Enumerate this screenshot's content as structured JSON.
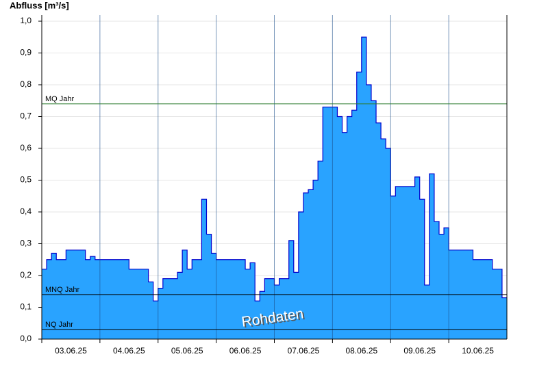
{
  "chart_data": {
    "type": "area",
    "title": "Abfluss [m³/s]",
    "annotation": "Rohdaten",
    "day_labels": [
      "03.06.25",
      "04.06.25",
      "05.06.25",
      "06.06.25",
      "07.06.25",
      "08.06.25",
      "09.06.25",
      "10.06.25"
    ],
    "series": [
      {
        "color": "#29a3ff",
        "line_color": "#0000cc",
        "values": [
          0.22,
          0.25,
          0.27,
          0.25,
          0.25,
          0.28,
          0.28,
          0.28,
          0.28,
          0.25,
          0.26,
          0.25,
          0.25,
          0.25,
          0.25,
          0.25,
          0.25,
          0.25,
          0.22,
          0.22,
          0.22,
          0.22,
          0.18,
          0.12,
          0.16,
          0.19,
          0.19,
          0.19,
          0.21,
          0.28,
          0.22,
          0.25,
          0.25,
          0.44,
          0.33,
          0.27,
          0.25,
          0.25,
          0.25,
          0.25,
          0.25,
          0.25,
          0.22,
          0.24,
          0.12,
          0.15,
          0.19,
          0.19,
          0.17,
          0.19,
          0.19,
          0.31,
          0.21,
          0.4,
          0.46,
          0.47,
          0.5,
          0.56,
          0.73,
          0.73,
          0.73,
          0.7,
          0.65,
          0.7,
          0.72,
          0.84,
          0.95,
          0.8,
          0.75,
          0.68,
          0.63,
          0.6,
          0.45,
          0.48,
          0.48,
          0.48,
          0.48,
          0.51,
          0.44,
          0.17,
          0.52,
          0.37,
          0.33,
          0.35,
          0.28,
          0.28,
          0.28,
          0.28,
          0.28,
          0.25,
          0.25,
          0.25,
          0.25,
          0.22,
          0.22,
          0.13
        ]
      }
    ],
    "reference_lines": [
      {
        "label": "MQ Jahr",
        "value": 0.74,
        "color": "#2e7d32"
      },
      {
        "label": "MNQ Jahr",
        "value": 0.14,
        "color": "#000000"
      },
      {
        "label": "NQ Jahr",
        "value": 0.03,
        "color": "#000000"
      }
    ],
    "ylim": [
      0,
      1
    ],
    "yticks": [
      {
        "value": 0,
        "label": "0,0"
      },
      {
        "value": 0.1,
        "label": "0,1"
      },
      {
        "value": 0.2,
        "label": "0,2"
      },
      {
        "value": 0.3,
        "label": "0,3"
      },
      {
        "value": 0.4,
        "label": "0,4"
      },
      {
        "value": 0.5,
        "label": "0,5"
      },
      {
        "value": 0.6,
        "label": "0,6"
      },
      {
        "value": 0.7,
        "label": "0,7"
      },
      {
        "value": 0.8,
        "label": "0,8"
      },
      {
        "value": 0.9,
        "label": "0,9"
      },
      {
        "value": 1,
        "label": "1,0"
      }
    ],
    "grid": true
  }
}
